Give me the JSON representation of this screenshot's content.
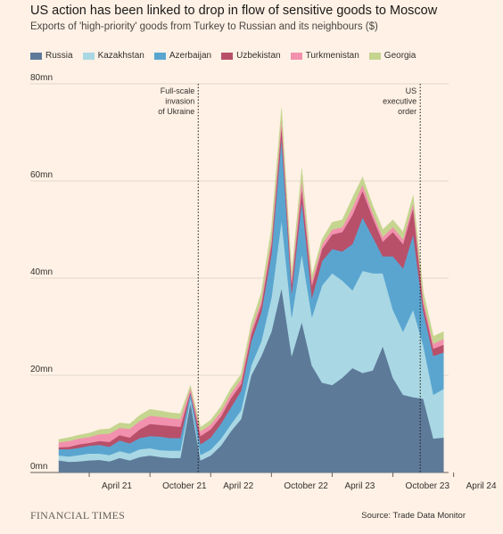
{
  "title": "US action has been linked to drop in flow of sensitive goods to Moscow",
  "subtitle": "Exports of 'high-priority' goods from Turkey to Russian and its neighbours ($)",
  "source": "Source: Trade Data Monitor",
  "publisher": "FINANCIAL TIMES",
  "colors": {
    "background": "#FFF1E5",
    "Russia": "#5E7A99",
    "Kazakhstan": "#A9D8E4",
    "Azerbaijan": "#5AA5D0",
    "Uzbekistan": "#B8506A",
    "Turkmenistan": "#F291AE",
    "Georgia": "#C5D58F"
  },
  "chart_data": {
    "type": "area",
    "stacked": true,
    "x_start": "2021-01",
    "ylim": [
      0,
      80
    ],
    "yticks": [
      0,
      20,
      40,
      60,
      80
    ],
    "ytick_labels": [
      "0mn",
      "20mn",
      "40mn",
      "60mn",
      "80mn"
    ],
    "xticks": [
      {
        "date": "2021-04",
        "label": "April 21"
      },
      {
        "date": "2021-10",
        "label": "October 21"
      },
      {
        "date": "2022-04",
        "label": "April 22"
      },
      {
        "date": "2022-10",
        "label": "October 22"
      },
      {
        "date": "2023-04",
        "label": "April 23"
      },
      {
        "date": "2023-10",
        "label": "October 23"
      },
      {
        "date": "2024-04",
        "label": "April 24"
      }
    ],
    "grid": true,
    "legend_position": "top",
    "annotations": [
      {
        "date": "2022-02-24",
        "lines": [
          "Full-scale",
          "invasion",
          "of Ukraine"
        ],
        "align": "right"
      },
      {
        "date": "2023-12-22",
        "lines": [
          "US",
          "executive",
          "order"
        ],
        "align": "right"
      }
    ],
    "x": [
      "2021-01",
      "2021-02",
      "2021-03",
      "2021-04",
      "2021-05",
      "2021-06",
      "2021-07",
      "2021-08",
      "2021-09",
      "2021-10",
      "2021-11",
      "2021-12",
      "2022-01",
      "2022-02",
      "2022-03",
      "2022-04",
      "2022-05",
      "2022-06",
      "2022-07",
      "2022-08",
      "2022-09",
      "2022-10",
      "2022-11",
      "2022-12",
      "2023-01",
      "2023-02",
      "2023-03",
      "2023-04",
      "2023-05",
      "2023-06",
      "2023-07",
      "2023-08",
      "2023-09",
      "2023-10",
      "2023-11",
      "2023-12",
      "2024-01",
      "2024-02",
      "2024-03"
    ],
    "series": [
      {
        "name": "Russia",
        "values": [
          2.5,
          2.2,
          2.3,
          2.5,
          2.6,
          2.3,
          3,
          2.5,
          3.2,
          3.5,
          3.2,
          3,
          3,
          14.5,
          2.5,
          3.5,
          5.5,
          8.5,
          11,
          20,
          24,
          29,
          38,
          24,
          31,
          22,
          18.5,
          18,
          19.5,
          21.5,
          20.5,
          21,
          26,
          19.5,
          16,
          15.5,
          15.2,
          7,
          7.2
        ]
      },
      {
        "name": "Kazakhstan",
        "values": [
          1,
          1.1,
          1.3,
          1.4,
          1.3,
          1.3,
          1.4,
          1.4,
          1.6,
          1.5,
          1.4,
          1.5,
          1.5,
          0.8,
          1.1,
          1.2,
          1.4,
          1.4,
          1.8,
          2,
          3,
          7,
          14,
          8,
          14,
          10,
          20,
          23,
          20,
          16,
          21,
          20,
          15,
          14,
          13,
          18,
          11,
          9,
          10
        ]
      },
      {
        "name": "Azerbaijan",
        "values": [
          1.3,
          1.5,
          1.5,
          1.6,
          1.8,
          1.7,
          2.2,
          2.1,
          2.3,
          2.5,
          2.8,
          2.6,
          2.6,
          1.1,
          2.2,
          2.5,
          3.1,
          3.5,
          4,
          5,
          6,
          9,
          17,
          5,
          11,
          4,
          5,
          5,
          6,
          9.5,
          11,
          7.5,
          3.5,
          11,
          13,
          15.5,
          7,
          8,
          7.5
        ]
      },
      {
        "name": "Uzbekistan",
        "values": [
          0.4,
          0.5,
          0.7,
          0.6,
          0.8,
          1,
          1.1,
          1.2,
          1.8,
          2.5,
          2.4,
          2.5,
          2.3,
          0.3,
          1.7,
          1.7,
          1.5,
          1.9,
          1.4,
          1.4,
          1.5,
          2,
          2.5,
          2,
          2.5,
          2.5,
          2.5,
          3,
          4,
          6,
          5.5,
          4,
          3,
          5,
          5,
          5.5,
          1.5,
          1.5,
          1.6
        ]
      },
      {
        "name": "Turkmenistan",
        "values": [
          1,
          1.2,
          1.2,
          1.2,
          1.4,
          1.7,
          1.5,
          1.8,
          1.7,
          1.7,
          1.7,
          1.6,
          1.6,
          0.7,
          1,
          1,
          1,
          1,
          1,
          1,
          1,
          1.1,
          1.5,
          1,
          2,
          1,
          1,
          1,
          1,
          1.5,
          1.3,
          1,
          1,
          1,
          1,
          1,
          1,
          1,
          1.2
        ]
      },
      {
        "name": "Georgia",
        "values": [
          0.6,
          0.7,
          0.7,
          0.8,
          0.9,
          1,
          1,
          1,
          1.2,
          1.3,
          1.2,
          1.1,
          1.1,
          0.5,
          0.8,
          0.9,
          1,
          1,
          1,
          1.2,
          1.5,
          2,
          2,
          1,
          2,
          1,
          1,
          1.5,
          1.5,
          2,
          1.5,
          1.5,
          1.5,
          1.5,
          1.5,
          1.5,
          1.5,
          1.5,
          1.5
        ]
      }
    ]
  }
}
